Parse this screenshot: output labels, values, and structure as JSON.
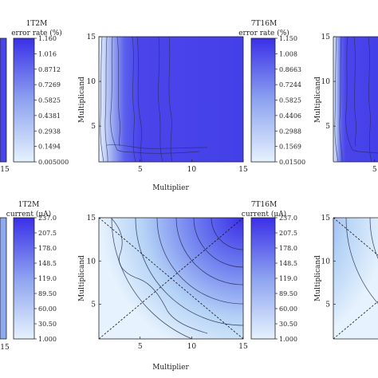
{
  "chart_data": [
    {
      "type": "heatmap",
      "title": "7T16M",
      "xlabel": "Multiplier",
      "ylabel": "Multiplicand",
      "xlim": [
        1,
        15
      ],
      "ylim": [
        1,
        15
      ],
      "xticks": [
        "5",
        "10",
        "15"
      ],
      "yticks": [
        "5",
        "10",
        "15"
      ],
      "colorbar": {
        "label": "error rate (%)",
        "ticks": [
          "1.150",
          "1.008",
          "0.8663",
          "0.7244",
          "0.5825",
          "0.4406",
          "0.2988",
          "0.1569",
          "0.01500"
        ],
        "colors": [
          "#e6f2fd",
          "#3d31e8"
        ]
      }
    },
    {
      "type": "heatmap",
      "title": "7T16M",
      "xlabel": "Multiplier",
      "ylabel": "Multiplicand",
      "xlim": [
        1,
        15
      ],
      "ylim": [
        1,
        15
      ],
      "xticks": [
        "5",
        "10",
        "15"
      ],
      "yticks": [
        "5",
        "10",
        "15"
      ],
      "colorbar": {
        "label": "current (μA)",
        "ticks": [
          "237.0",
          "207.5",
          "178.0",
          "148.5",
          "119.0",
          "89.50",
          "60.00",
          "30.50",
          "1.000"
        ],
        "colors": [
          "#e6f2fd",
          "#3d31e8"
        ]
      }
    },
    {
      "type": "heatmap",
      "title": "1T2M",
      "colorbar": {
        "label": "error rate (%)",
        "ticks": [
          "1.160",
          "1.016",
          "0.8712",
          "0.7269",
          "0.5825",
          "0.4381",
          "0.2938",
          "0.1494",
          "0.005000"
        ]
      },
      "xticks": [
        "15"
      ]
    },
    {
      "type": "heatmap",
      "title": "1T2M",
      "colorbar": {
        "label": "current (μA)",
        "ticks": [
          "237.0",
          "207.5",
          "178.0",
          "148.5",
          "119.0",
          "89.50",
          "60.00",
          "30.50",
          "1.000"
        ]
      },
      "xticks": [
        "15"
      ]
    },
    {
      "type": "heatmap",
      "ylabel": "Multiplicand",
      "yticks": [
        "5",
        "10",
        "15"
      ],
      "xticks": [
        "5"
      ]
    },
    {
      "type": "heatmap",
      "ylabel": "Multiplicand",
      "yticks": [
        "5",
        "10",
        "15"
      ]
    }
  ]
}
